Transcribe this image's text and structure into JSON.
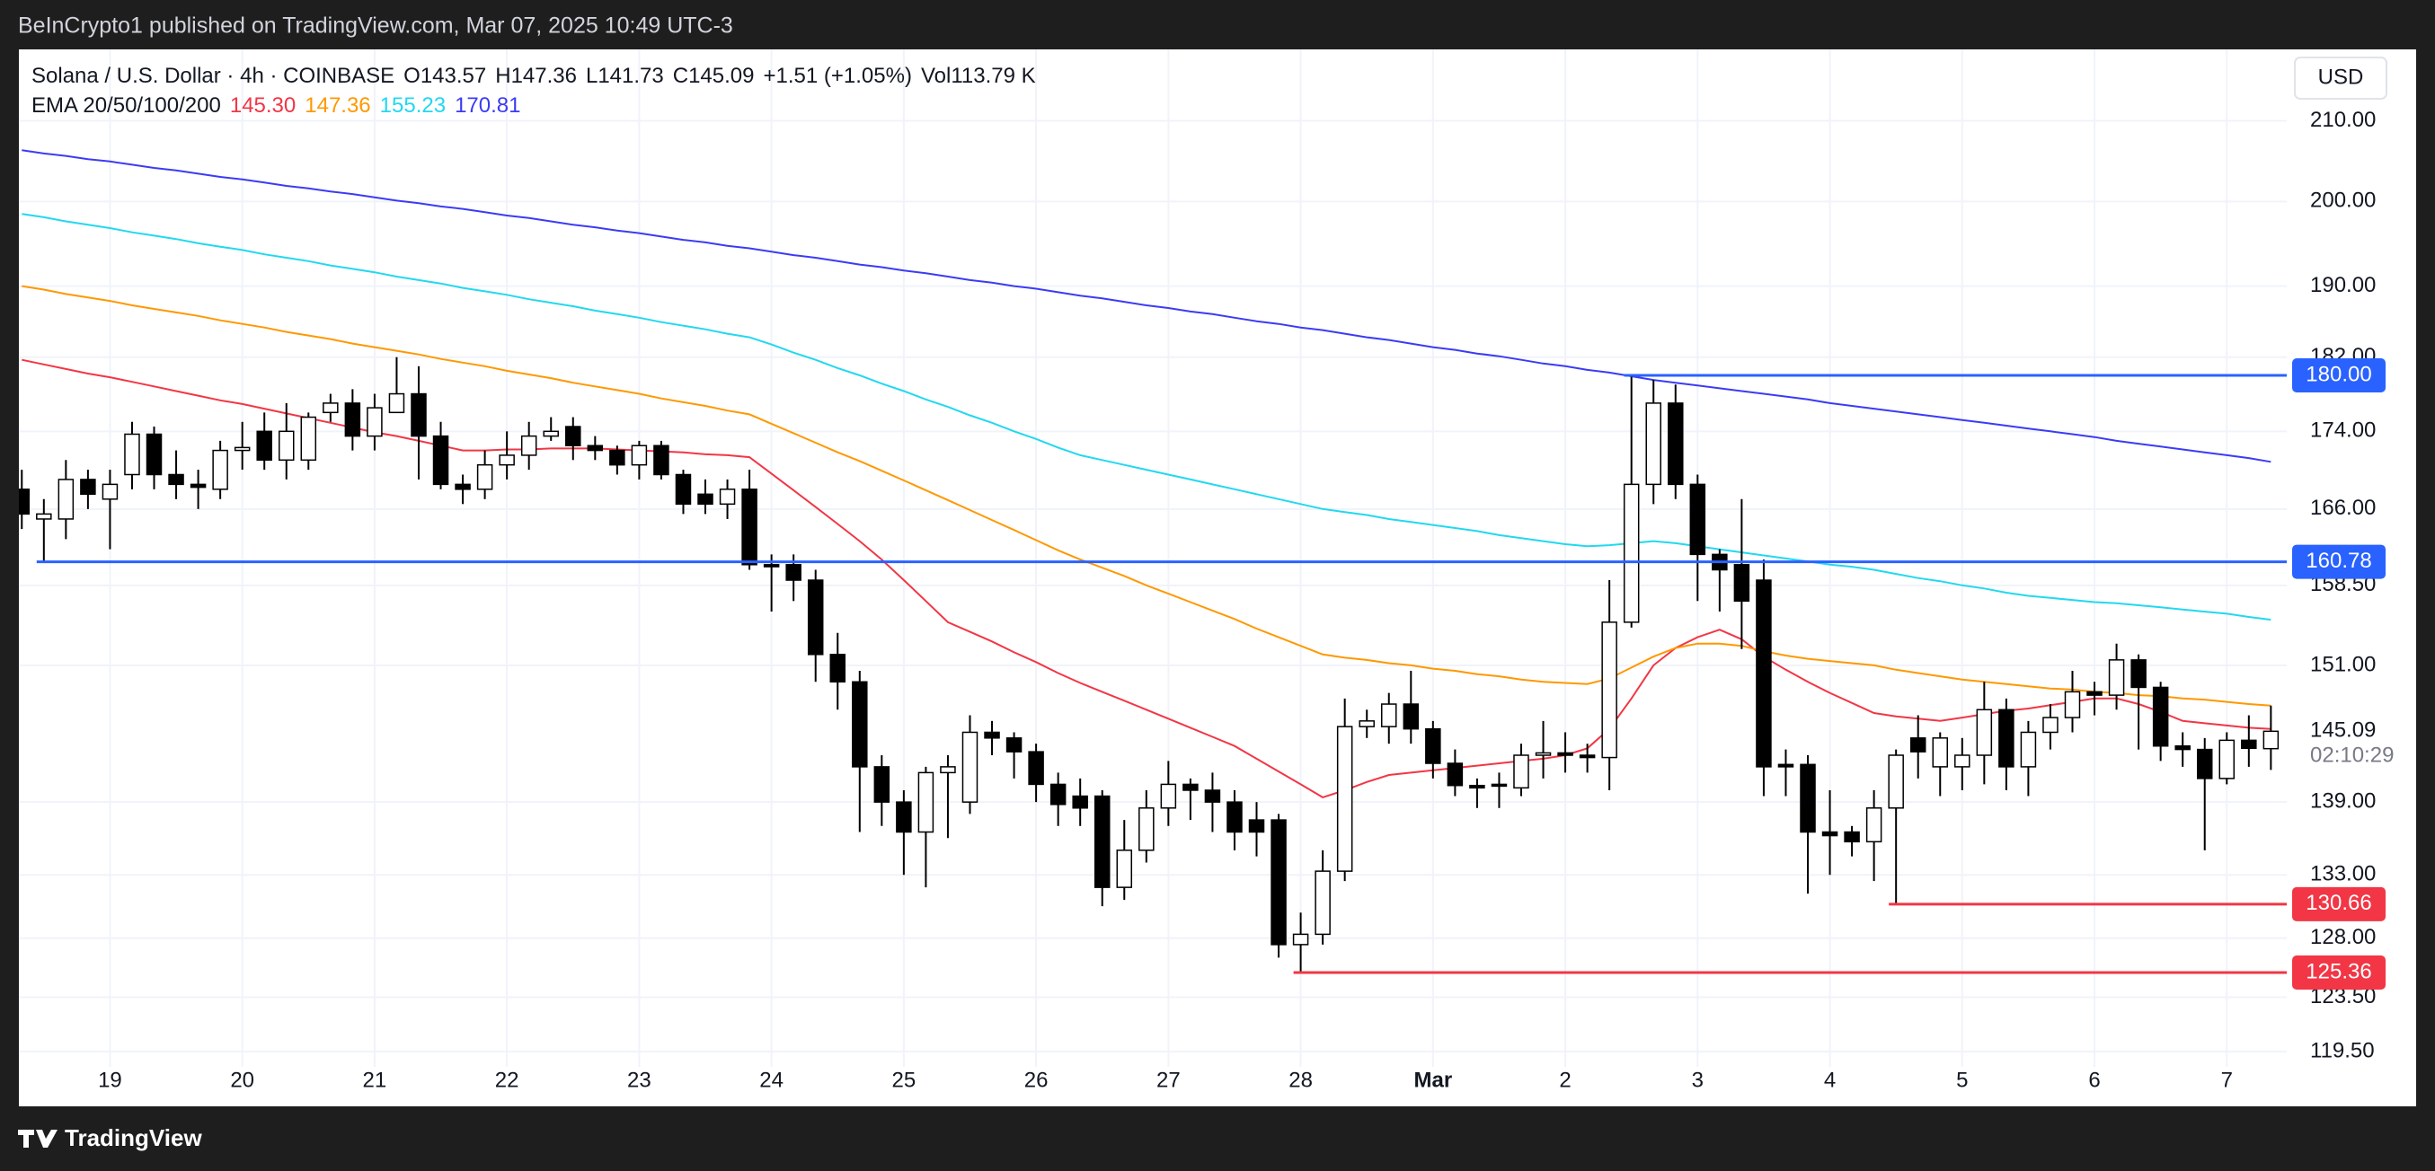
{
  "header": {
    "published": "BeInCrypto1 published on TradingView.com, Mar 07, 2025 10:49 UTC-3",
    "currency": "USD",
    "brand": "TradingView"
  },
  "chart_data": {
    "type": "candlestick",
    "symbol": "Solana / U.S. Dollar · 4h · COINBASE",
    "ohlc_legend": [
      "O143.57",
      "H147.36",
      "L141.73",
      "C145.09",
      "+1.51 (+1.05%)",
      "Vol113.79 K"
    ],
    "overlay_title": "EMA 20/50/100/200",
    "log_scale": true,
    "grid": true,
    "up_color": "#ffffff",
    "down_color": "#000000",
    "outline_color": "#000000",
    "categories": [
      null,
      null,
      null,
      null,
      "19",
      null,
      null,
      null,
      null,
      null,
      "20",
      null,
      null,
      null,
      null,
      null,
      "21",
      null,
      null,
      null,
      null,
      null,
      "22",
      null,
      null,
      null,
      null,
      null,
      "23",
      null,
      null,
      null,
      null,
      null,
      "24",
      null,
      null,
      null,
      null,
      null,
      "25",
      null,
      null,
      null,
      null,
      null,
      "26",
      null,
      null,
      null,
      null,
      null,
      "27",
      null,
      null,
      null,
      null,
      null,
      "28",
      null,
      null,
      null,
      null,
      null,
      "Mar",
      null,
      null,
      null,
      null,
      null,
      "2",
      null,
      null,
      null,
      null,
      null,
      "3",
      null,
      null,
      null,
      null,
      null,
      "4",
      null,
      null,
      null,
      null,
      null,
      "5",
      null,
      null,
      null,
      null,
      null,
      "6",
      null,
      null,
      null,
      null,
      null,
      "7",
      null,
      null
    ],
    "open": [
      168,
      165,
      165,
      169,
      167,
      169.5,
      173.7,
      169.5,
      168.5,
      168,
      172,
      174,
      171,
      171,
      176,
      177,
      173.5,
      176,
      178,
      173.5,
      168.5,
      168,
      170.5,
      171.5,
      173.5,
      174.5,
      172.5,
      172,
      170.5,
      172.5,
      169.5,
      167.5,
      166.5,
      168,
      160.5,
      160.5,
      159,
      152,
      149.5,
      142,
      139,
      136.5,
      141.5,
      139,
      145,
      144.5,
      143.3,
      140.5,
      139.5,
      139.5,
      132,
      135,
      138.5,
      140.5,
      140,
      139,
      137.5,
      137.5,
      127.5,
      128.3,
      133.3,
      145.5,
      145.5,
      147.5,
      145.3,
      142.3,
      140.4,
      140.5,
      140.2,
      143,
      143.2,
      143,
      142.8,
      155,
      168.5,
      177,
      168.5,
      161.5,
      160.5,
      159,
      142.2,
      142.2,
      136.5,
      136.5,
      135.7,
      138.5,
      144.5,
      142,
      142,
      143,
      147,
      142,
      145,
      146.3,
      148.6,
      148.3,
      151.5,
      149,
      143.8,
      143.5,
      141,
      144.3,
      143.57
    ],
    "high": [
      170,
      167,
      171,
      170,
      170,
      175,
      174.5,
      172,
      170,
      173,
      175,
      176,
      177,
      176,
      178,
      178.5,
      178,
      182,
      181,
      175,
      169.5,
      172,
      174,
      175,
      175.5,
      175.5,
      173.5,
      172.5,
      173,
      173,
      170,
      169,
      169,
      170,
      161.5,
      161.5,
      160,
      154,
      150.5,
      143,
      140,
      142,
      143,
      146.5,
      146,
      145,
      144,
      141.5,
      141,
      140,
      137.5,
      140,
      142.5,
      141,
      141.5,
      140,
      139,
      138,
      130,
      135,
      148,
      147,
      148.5,
      150.5,
      146,
      143.5,
      141,
      141.5,
      144,
      146,
      145,
      144,
      159,
      180,
      179.5,
      179,
      169.5,
      162,
      167,
      161,
      143.5,
      143,
      140,
      137,
      140,
      143.5,
      146.5,
      145,
      144.5,
      149.5,
      148,
      146,
      147.5,
      150.5,
      149.5,
      153,
      152,
      149.5,
      145,
      144.5,
      145,
      146.5,
      147.36
    ],
    "low": [
      164,
      160.78,
      163,
      166,
      162,
      168,
      168,
      167,
      166,
      167,
      170,
      170,
      169,
      170,
      175,
      172,
      172,
      176,
      169,
      168,
      166.5,
      167,
      169,
      170,
      173,
      171,
      171,
      169.5,
      169,
      169,
      165.5,
      165.5,
      165,
      160,
      156,
      157,
      149.5,
      147,
      136.5,
      137,
      133,
      132,
      136,
      138,
      143,
      141,
      139,
      137,
      137,
      130.5,
      131,
      134,
      137,
      137.5,
      136.5,
      135,
      134.5,
      126.5,
      125.36,
      127.5,
      132.5,
      144.5,
      144,
      144,
      141,
      139.5,
      138.5,
      138.5,
      139.5,
      141,
      141.5,
      141.5,
      140,
      154.5,
      166.5,
      167,
      157,
      156,
      152.5,
      139.5,
      139.5,
      131.5,
      133,
      134.5,
      132.5,
      130.66,
      141,
      139.5,
      140,
      140.5,
      140,
      139.5,
      143.5,
      145,
      146.5,
      147,
      143.5,
      142.5,
      142,
      135,
      140.5,
      142,
      141.73
    ],
    "close": [
      165.5,
      165.5,
      169,
      167.5,
      168.5,
      173.7,
      169.5,
      168.5,
      168.2,
      172,
      172.3,
      171,
      174,
      175.5,
      177,
      173.5,
      176.5,
      178,
      173.5,
      168.5,
      168,
      170.5,
      171.5,
      173.5,
      174,
      172.5,
      172,
      170.5,
      172.5,
      169.5,
      166.5,
      166.5,
      168,
      160.5,
      160.3,
      159,
      152,
      149.5,
      142,
      139,
      136.5,
      141.5,
      142,
      145,
      144.5,
      143.3,
      140.5,
      138.8,
      138.5,
      132,
      135,
      138.5,
      140.5,
      140,
      139,
      136.5,
      136.5,
      127.5,
      128.3,
      133.3,
      145.5,
      146,
      147.5,
      145.3,
      142.3,
      140.4,
      140.2,
      140.4,
      143,
      143.2,
      143,
      142.8,
      155,
      168.5,
      177,
      168.5,
      161.5,
      160,
      157,
      142,
      142,
      136.5,
      136.2,
      135.7,
      138.5,
      143,
      143.3,
      144.5,
      143,
      147,
      142,
      145,
      146.3,
      148.6,
      148.3,
      151.5,
      149,
      143.8,
      143.5,
      141,
      144.3,
      143.6,
      145.09
    ],
    "overlays": [
      {
        "legend_value": "145.30",
        "color": "#f23645",
        "values": [
          181.7,
          181.2,
          180.7,
          180.2,
          179.8,
          179.3,
          178.8,
          178.3,
          177.8,
          177.3,
          176.9,
          176.4,
          175.9,
          175.4,
          174.9,
          174.4,
          173.9,
          173.5,
          173.0,
          172.5,
          172.0,
          172.0,
          172.1,
          172.1,
          172.2,
          172.2,
          172.2,
          172.1,
          172.0,
          171.9,
          171.8,
          171.6,
          171.5,
          171.3,
          169.6,
          167.9,
          166.2,
          164.5,
          162.8,
          161.0,
          159.0,
          157.0,
          155.0,
          154.1,
          153.2,
          152.2,
          151.3,
          150.3,
          149.4,
          148.6,
          147.8,
          147.0,
          146.2,
          145.4,
          144.6,
          143.8,
          142.7,
          141.6,
          140.5,
          139.4,
          140.0,
          140.7,
          141.3,
          141.5,
          141.7,
          141.9,
          142.1,
          142.3,
          142.5,
          142.7,
          143.0,
          143.6,
          145.3,
          148.0,
          151.0,
          152.6,
          153.6,
          154.3,
          153.4,
          151.8,
          150.6,
          149.5,
          148.5,
          147.6,
          146.7,
          146.4,
          146.2,
          146.0,
          146.3,
          146.6,
          146.9,
          147.1,
          147.4,
          147.7,
          148.0,
          148.0,
          147.5,
          146.8,
          146.0,
          145.8,
          145.6,
          145.4,
          145.3
        ]
      },
      {
        "legend_value": "147.36",
        "color": "#ff9800",
        "values": [
          190.0,
          189.6,
          189.1,
          188.7,
          188.3,
          187.8,
          187.4,
          187.0,
          186.6,
          186.1,
          185.7,
          185.3,
          184.8,
          184.4,
          184.0,
          183.5,
          183.1,
          182.7,
          182.3,
          181.8,
          181.4,
          181.0,
          180.5,
          180.1,
          179.7,
          179.2,
          178.8,
          178.4,
          178.0,
          177.5,
          177.1,
          176.7,
          176.2,
          175.8,
          174.8,
          173.8,
          172.8,
          171.8,
          170.9,
          169.9,
          168.9,
          167.9,
          166.9,
          165.9,
          164.9,
          163.9,
          162.9,
          161.9,
          161.0,
          160.2,
          159.4,
          158.5,
          157.7,
          156.9,
          156.1,
          155.3,
          154.4,
          153.6,
          152.8,
          152.0,
          151.7,
          151.5,
          151.2,
          151.0,
          150.7,
          150.5,
          150.2,
          150.0,
          149.7,
          149.5,
          149.4,
          149.3,
          149.8,
          150.8,
          151.8,
          152.6,
          153.0,
          153.0,
          152.8,
          152.3,
          151.9,
          151.6,
          151.4,
          151.2,
          151.0,
          150.6,
          150.3,
          150.0,
          149.7,
          149.5,
          149.3,
          149.1,
          148.9,
          148.8,
          148.6,
          148.5,
          148.3,
          148.2,
          148.0,
          147.9,
          147.7,
          147.5,
          147.36
        ]
      },
      {
        "legend_value": "155.23",
        "color": "#22d8f0",
        "values": [
          198.5,
          198.1,
          197.6,
          197.2,
          196.8,
          196.3,
          195.9,
          195.5,
          195.0,
          194.6,
          194.2,
          193.7,
          193.3,
          192.9,
          192.4,
          192.0,
          191.6,
          191.1,
          190.7,
          190.3,
          189.8,
          189.4,
          189.0,
          188.5,
          188.1,
          187.7,
          187.2,
          186.8,
          186.4,
          185.9,
          185.5,
          185.1,
          184.6,
          184.2,
          183.4,
          182.5,
          181.7,
          180.8,
          180.0,
          179.1,
          178.3,
          177.4,
          176.6,
          175.7,
          174.9,
          174.0,
          173.2,
          172.3,
          171.5,
          171.0,
          170.5,
          170.0,
          169.5,
          169.0,
          168.5,
          168.0,
          167.5,
          167.0,
          166.5,
          166.0,
          165.7,
          165.4,
          165.0,
          164.7,
          164.4,
          164.1,
          163.8,
          163.4,
          163.1,
          162.8,
          162.5,
          162.3,
          162.4,
          162.6,
          162.8,
          162.6,
          162.3,
          162.0,
          161.7,
          161.4,
          161.1,
          160.8,
          160.5,
          160.3,
          160.0,
          159.6,
          159.2,
          158.9,
          158.5,
          158.2,
          157.8,
          157.5,
          157.3,
          157.1,
          156.9,
          156.8,
          156.6,
          156.4,
          156.2,
          156.0,
          155.8,
          155.5,
          155.23
        ]
      },
      {
        "legend_value": "170.81",
        "color": "#3b3bf5",
        "values": [
          206.3,
          205.9,
          205.6,
          205.2,
          204.9,
          204.5,
          204.1,
          203.8,
          203.4,
          203.0,
          202.7,
          202.3,
          201.9,
          201.6,
          201.2,
          200.9,
          200.5,
          200.1,
          199.8,
          199.4,
          199.1,
          198.7,
          198.3,
          198.0,
          197.6,
          197.2,
          196.9,
          196.5,
          196.2,
          195.8,
          195.4,
          195.1,
          194.7,
          194.4,
          194.0,
          193.6,
          193.3,
          192.9,
          192.5,
          192.2,
          191.8,
          191.5,
          191.1,
          190.7,
          190.4,
          190.0,
          189.7,
          189.3,
          188.9,
          188.6,
          188.2,
          187.8,
          187.5,
          187.1,
          186.8,
          186.4,
          186.0,
          185.7,
          185.3,
          185.0,
          184.6,
          184.2,
          183.9,
          183.5,
          183.1,
          182.8,
          182.4,
          182.1,
          181.7,
          181.3,
          181.0,
          180.6,
          180.3,
          179.9,
          179.5,
          179.2,
          178.9,
          178.6,
          178.3,
          178.0,
          177.7,
          177.4,
          177.0,
          176.7,
          176.4,
          176.1,
          175.8,
          175.5,
          175.2,
          174.9,
          174.6,
          174.3,
          174.0,
          173.7,
          173.4,
          173.0,
          172.7,
          172.4,
          172.1,
          171.8,
          171.5,
          171.2,
          170.81
        ]
      }
    ],
    "levels": [
      {
        "value": 180,
        "label": "180.00",
        "color": "#2962ff",
        "start": 73
      },
      {
        "value": 160.78,
        "label": "160.78",
        "color": "#2962ff",
        "start": 1
      },
      {
        "value": 130.66,
        "label": "130.66",
        "color": "#f23645",
        "start": 85
      },
      {
        "value": 125.36,
        "label": "125.36",
        "color": "#f23645",
        "start": 58
      }
    ],
    "last_price": {
      "value": 145.09,
      "label": "145.09",
      "countdown": "02:10:29"
    },
    "ylim": [
      118.4,
      219.3
    ],
    "yticks": [
      {
        "value": 210,
        "label": "210.00"
      },
      {
        "value": 200,
        "label": "200.00"
      },
      {
        "value": 190,
        "label": "190.00"
      },
      {
        "value": 182,
        "label": "182.00"
      },
      {
        "value": 174,
        "label": "174.00"
      },
      {
        "value": 166,
        "label": "166.00"
      },
      {
        "value": 158.5,
        "label": "158.50"
      },
      {
        "value": 151,
        "label": "151.00"
      },
      {
        "value": 139,
        "label": "139.00"
      },
      {
        "value": 133,
        "label": "133.00"
      },
      {
        "value": 128,
        "label": "128.00"
      },
      {
        "value": 123.5,
        "label": "123.50"
      },
      {
        "value": 119.5,
        "label": "119.50"
      }
    ]
  }
}
